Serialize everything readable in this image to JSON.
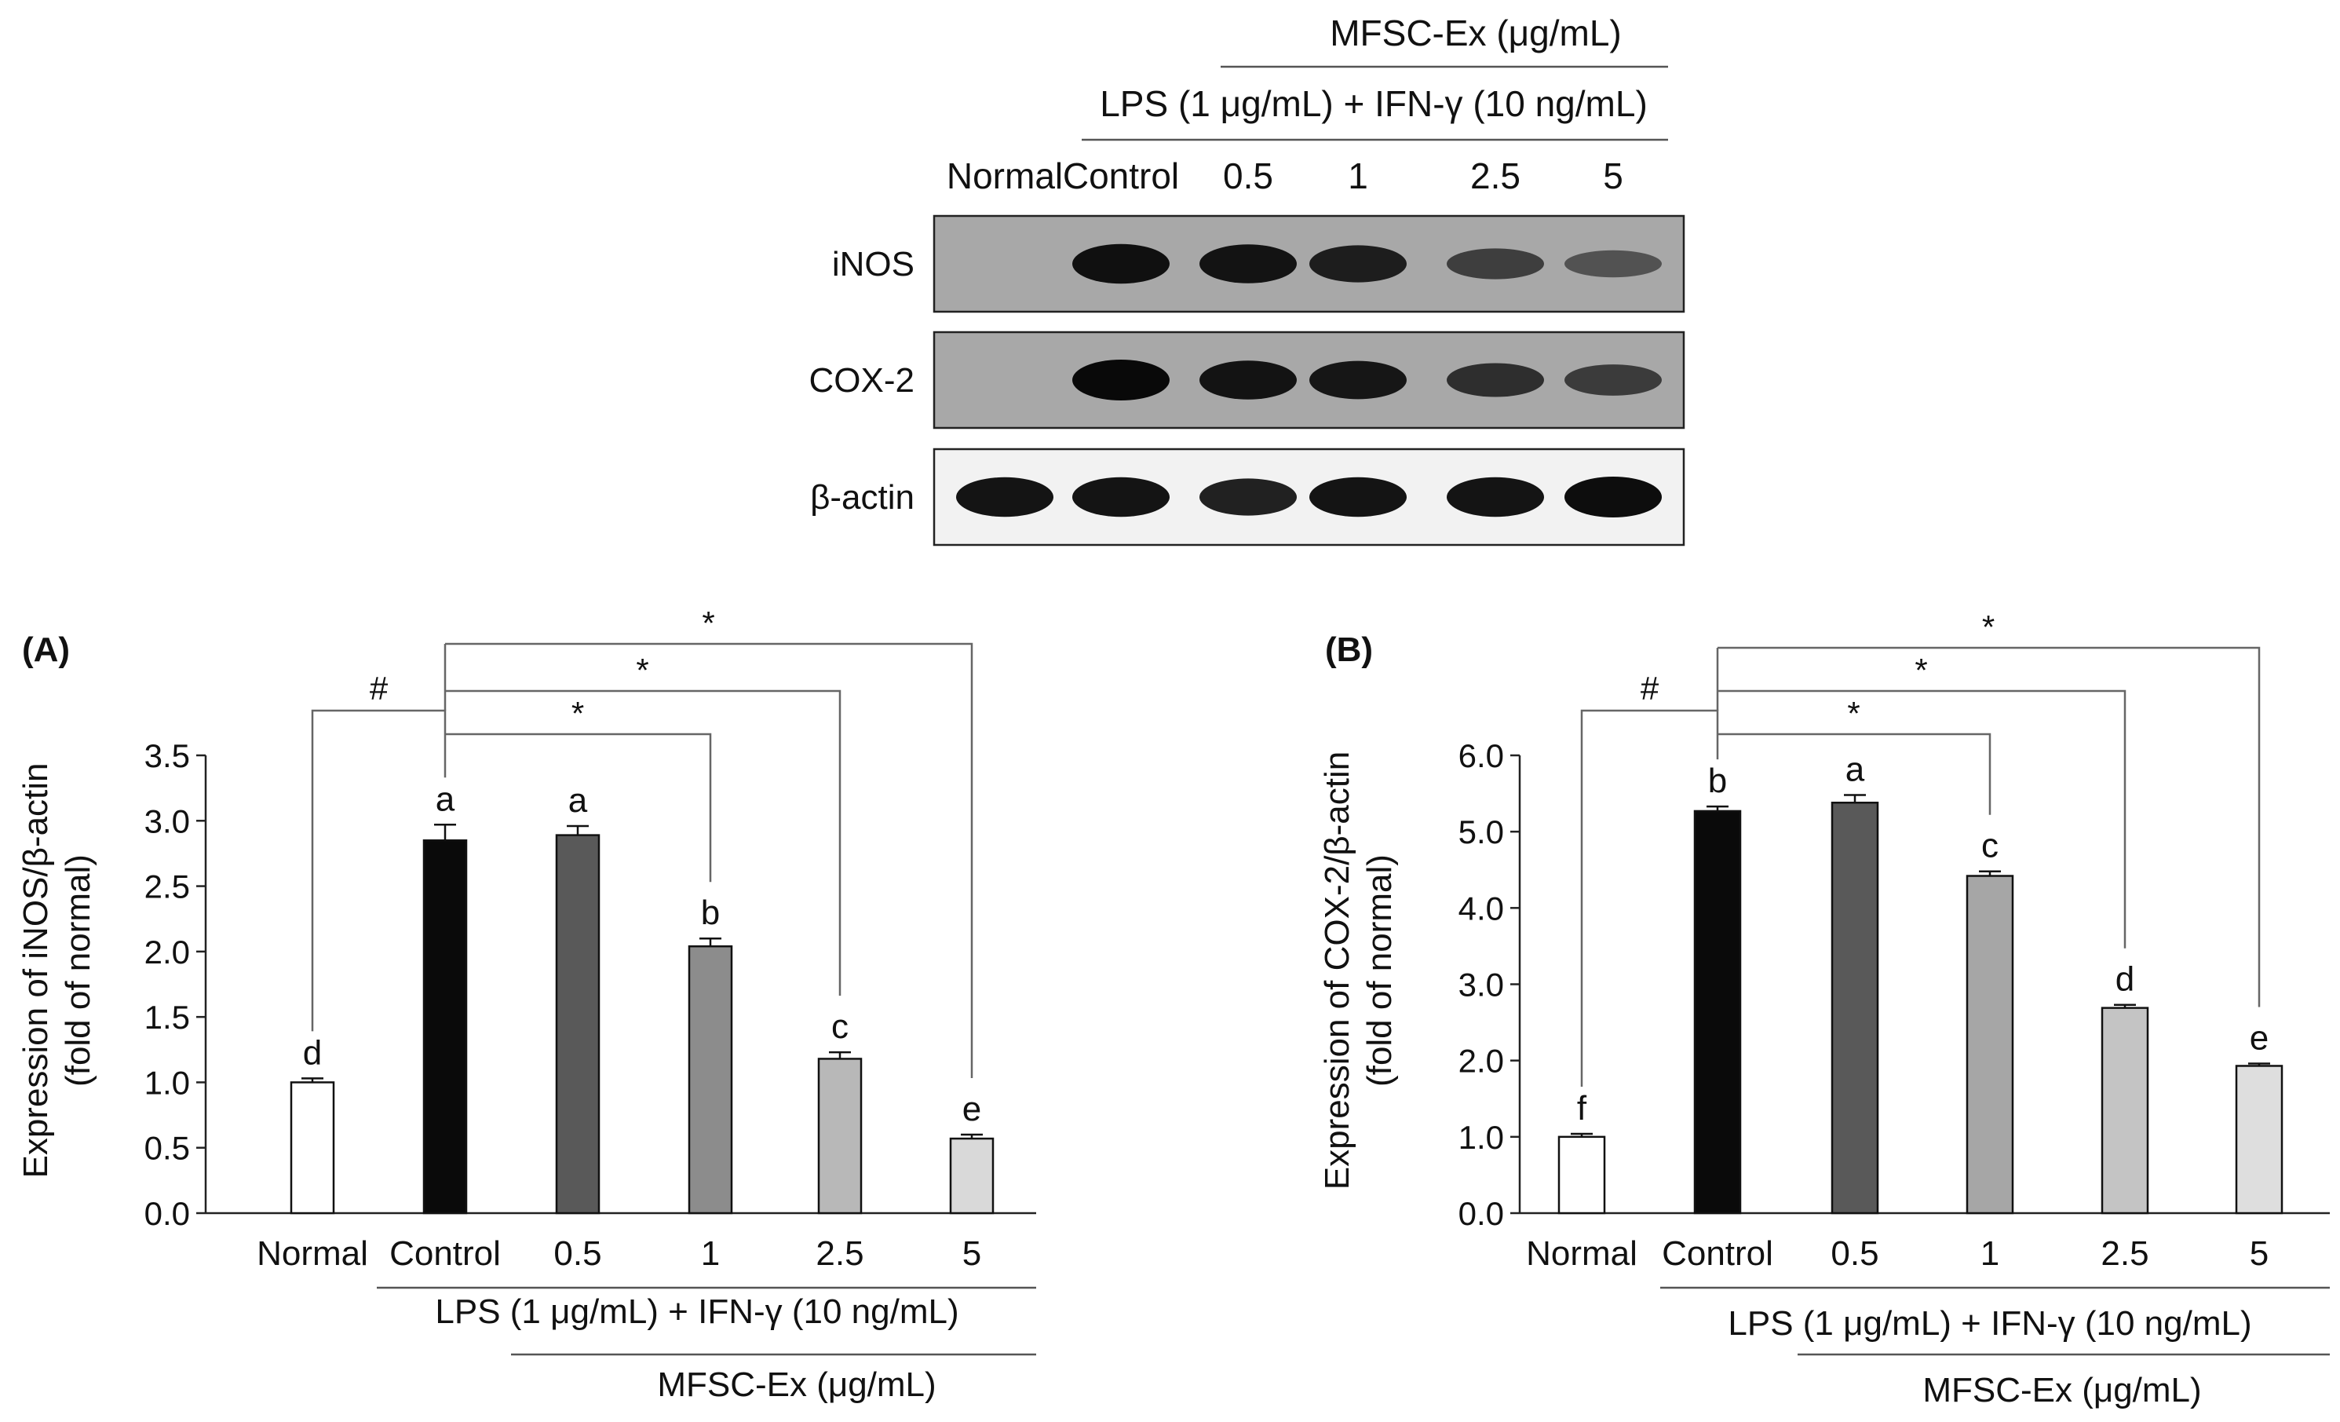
{
  "blot": {
    "header_top": "MFSC-Ex (μg/mL)",
    "header_mid": "LPS (1 μg/mL) + IFN-γ (10 ng/mL)",
    "lanes": [
      "Normal",
      "Control",
      "0.5",
      "1",
      "2.5",
      "5"
    ],
    "rows": [
      {
        "label": "iNOS",
        "intensity": [
          0.0,
          0.95,
          0.92,
          0.85,
          0.6,
          0.45
        ],
        "background": "#a8a8a8"
      },
      {
        "label": "COX-2",
        "intensity": [
          0.0,
          1.0,
          0.92,
          0.9,
          0.72,
          0.62
        ],
        "background": "#a8a8a8"
      },
      {
        "label": "β-actin",
        "intensity": [
          0.95,
          0.95,
          0.85,
          0.95,
          0.95,
          1.0
        ],
        "background": "#f2f2f2"
      }
    ]
  },
  "chart_data": [
    {
      "type": "bar",
      "panel": "(A)",
      "categories": [
        "Normal",
        "Control",
        "0.5",
        "1",
        "2.5",
        "5"
      ],
      "values": [
        1.0,
        2.85,
        2.89,
        2.04,
        1.18,
        0.57
      ],
      "errors": [
        0.03,
        0.12,
        0.07,
        0.06,
        0.05,
        0.03
      ],
      "letters": [
        "d",
        "a",
        "a",
        "b",
        "c",
        "e"
      ],
      "colors": [
        "#ffffff",
        "#0a0a0a",
        "#595959",
        "#8c8c8c",
        "#b8b8b8",
        "#d9d9d9"
      ],
      "ylabel_line1": "Expression of iNOS/β-actin",
      "ylabel_line2": "(fold of normal)",
      "ylim": [
        0,
        3.5
      ],
      "ytick_labels": [
        "0.0",
        "0.5",
        "1.0",
        "1.5",
        "2.0",
        "2.5",
        "3.0",
        "3.5"
      ],
      "group_label_lps": "LPS (1 μg/mL) + IFN-γ (10 ng/mL)",
      "group_label_mfsc": "MFSC-Ex (μg/mL)",
      "sig_hash": "#",
      "sig_star": "*",
      "grid": false
    },
    {
      "type": "bar",
      "panel": "(B)",
      "categories": [
        "Normal",
        "Control",
        "0.5",
        "1",
        "2.5",
        "5"
      ],
      "values": [
        1.0,
        5.27,
        5.38,
        4.42,
        2.69,
        1.93
      ],
      "errors": [
        0.04,
        0.06,
        0.1,
        0.06,
        0.04,
        0.03
      ],
      "letters": [
        "f",
        "b",
        "a",
        "c",
        "d",
        "e"
      ],
      "colors": [
        "#ffffff",
        "#0a0a0a",
        "#595959",
        "#a6a6a6",
        "#c4c4c4",
        "#dedede"
      ],
      "ylabel_line1": "Expression of COX-2/β-actin",
      "ylabel_line2": "(fold of normal)",
      "ylim": [
        0,
        6
      ],
      "ytick_labels": [
        "0.0",
        "1.0",
        "2.0",
        "3.0",
        "4.0",
        "5.0",
        "6.0"
      ],
      "group_label_lps": "LPS (1 μg/mL) + IFN-γ (10 ng/mL)",
      "group_label_mfsc": "MFSC-Ex (μg/mL)",
      "sig_hash": "#",
      "sig_star": "*",
      "grid": false
    }
  ]
}
